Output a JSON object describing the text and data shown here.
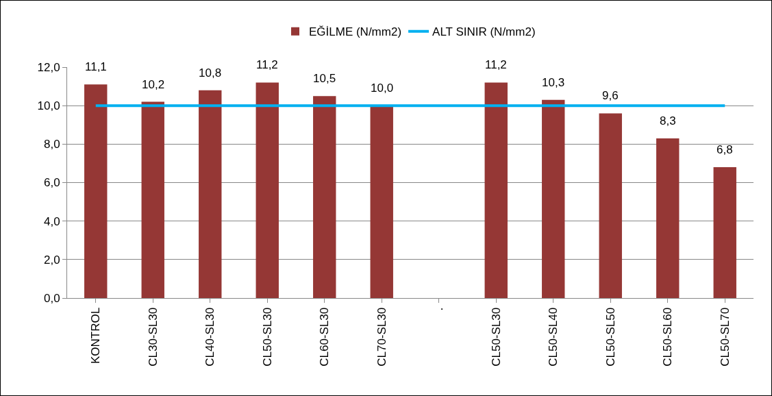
{
  "chart_data": {
    "type": "bar",
    "categories": [
      "KONTROL",
      "CL30-SL30",
      "CL40-SL30",
      "CL50-SL30",
      "CL60-SL30",
      "CL70-SL30",
      ".",
      "CL50-SL30",
      "CL50-SL40",
      "CL50-SL50",
      "CL50-SL60",
      "CL50-SL70"
    ],
    "series": [
      {
        "name": "EĞİLME (N/mm2)",
        "color": "#953735",
        "values": [
          11.1,
          10.2,
          10.8,
          11.2,
          10.5,
          10.0,
          null,
          11.2,
          10.3,
          9.6,
          8.3,
          6.8
        ],
        "value_labels": [
          "11,1",
          "10,2",
          "10,8",
          "11,2",
          "10,5",
          "10,0",
          null,
          "11,2",
          "10,3",
          "9,6",
          "8,3",
          "6,8"
        ]
      },
      {
        "name": "ALT SINIR (N/mm2)",
        "type": "line",
        "color": "#00b0f0",
        "values": [
          10,
          10,
          10,
          10,
          10,
          10,
          10,
          10,
          10,
          10,
          10,
          10
        ]
      }
    ],
    "ylim": [
      0,
      12
    ],
    "yticks": [
      {
        "value": 0,
        "label": "0,0"
      },
      {
        "value": 2,
        "label": "2,0"
      },
      {
        "value": 4,
        "label": "4,0"
      },
      {
        "value": 6,
        "label": "6,0"
      },
      {
        "value": 8,
        "label": "8,0"
      },
      {
        "value": 10,
        "label": "10,0"
      },
      {
        "value": 12,
        "label": "12,0"
      }
    ],
    "grid": "y",
    "legend": "top",
    "marker": "none",
    "line_style": "solid"
  }
}
